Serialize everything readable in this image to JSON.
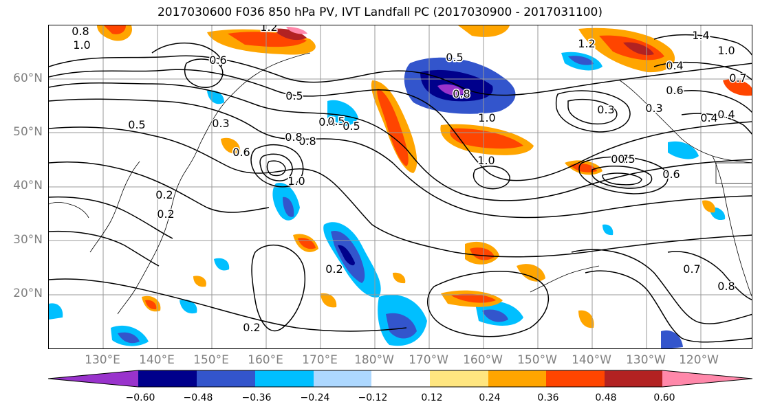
{
  "title": "2017030600 F036 850 hPa PV, IVT Landfall PC (2017030900 - 2017031100)",
  "lat_labels": [
    "60°N",
    "50°N",
    "40°N",
    "30°N",
    "20°N"
  ],
  "lon_labels": [
    "130°E",
    "140°E",
    "150°E",
    "160°E",
    "170°E",
    "180°W",
    "170°W",
    "160°W",
    "150°W",
    "140°W",
    "130°W",
    "120°W"
  ],
  "colorbar": {
    "ticks": [
      "−0.60",
      "−0.48",
      "−0.36",
      "−0.24",
      "−0.12",
      "0.12",
      "0.24",
      "0.36",
      "0.48",
      "0.60"
    ],
    "colors": [
      "#9933cc",
      "#00008b",
      "#3355cc",
      "#00bfff",
      "#add8ff",
      "#ffffff",
      "#ffe680",
      "#ffa500",
      "#ff4500",
      "#b22222",
      "#ff88aa"
    ]
  },
  "contour_labels": [
    "0.8",
    "1.0",
    "1.2",
    "1.4",
    "1.2",
    "1.0",
    "0.6",
    "0.7",
    "0.5",
    "0.4",
    "0.5",
    "0.8",
    "1.0",
    "0.3",
    "0.6",
    "0.4",
    "0.5",
    "0.8",
    "0.6",
    "1.0",
    "0.3",
    "0.2",
    "0.5",
    "0.7",
    "0.6",
    "0.2",
    "0.2",
    "0.7",
    "0.8",
    "0.2",
    "0.4",
    "0.5",
    "1.0",
    "0.4",
    "0.6",
    "0.3",
    "0.5",
    "0.8"
  ]
}
